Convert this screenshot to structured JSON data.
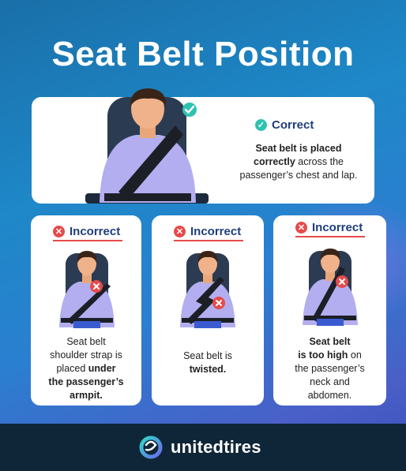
{
  "title": "Seat Belt Position",
  "main_card": {
    "status": "Correct",
    "text_1": "Seat belt is placed",
    "text_2_bold": "correctly",
    "text_2_rest": " across the",
    "text_3": "passenger’s chest and lap."
  },
  "cards": [
    {
      "status": "Incorrect",
      "line_1": "Seat belt",
      "line_2": "shoulder strap is",
      "line_3_plain": "placed ",
      "line_3_bold": "under",
      "line_4_bold": "the passenger’s",
      "line_5_bold": "armpit."
    },
    {
      "status": "Incorrect",
      "line_1": "Seat belt is",
      "line_2_bold": "twisted."
    },
    {
      "status": "Incorrect",
      "line_1_bold": "Seat belt",
      "line_2_bold": "is too high",
      "line_2_rest": " on",
      "line_3": "the passenger’s",
      "line_4": "neck and",
      "line_5": "abdomen."
    }
  ],
  "brand": {
    "name": "unitedtires"
  },
  "colors": {
    "navy": "#1f3e7a",
    "error": "#e64a4a",
    "success": "#2fc2b0",
    "footer": "#0f2538"
  },
  "icons": {
    "correct": "check-icon",
    "incorrect": "x-icon",
    "logo": "unitedtires-logo-icon"
  }
}
